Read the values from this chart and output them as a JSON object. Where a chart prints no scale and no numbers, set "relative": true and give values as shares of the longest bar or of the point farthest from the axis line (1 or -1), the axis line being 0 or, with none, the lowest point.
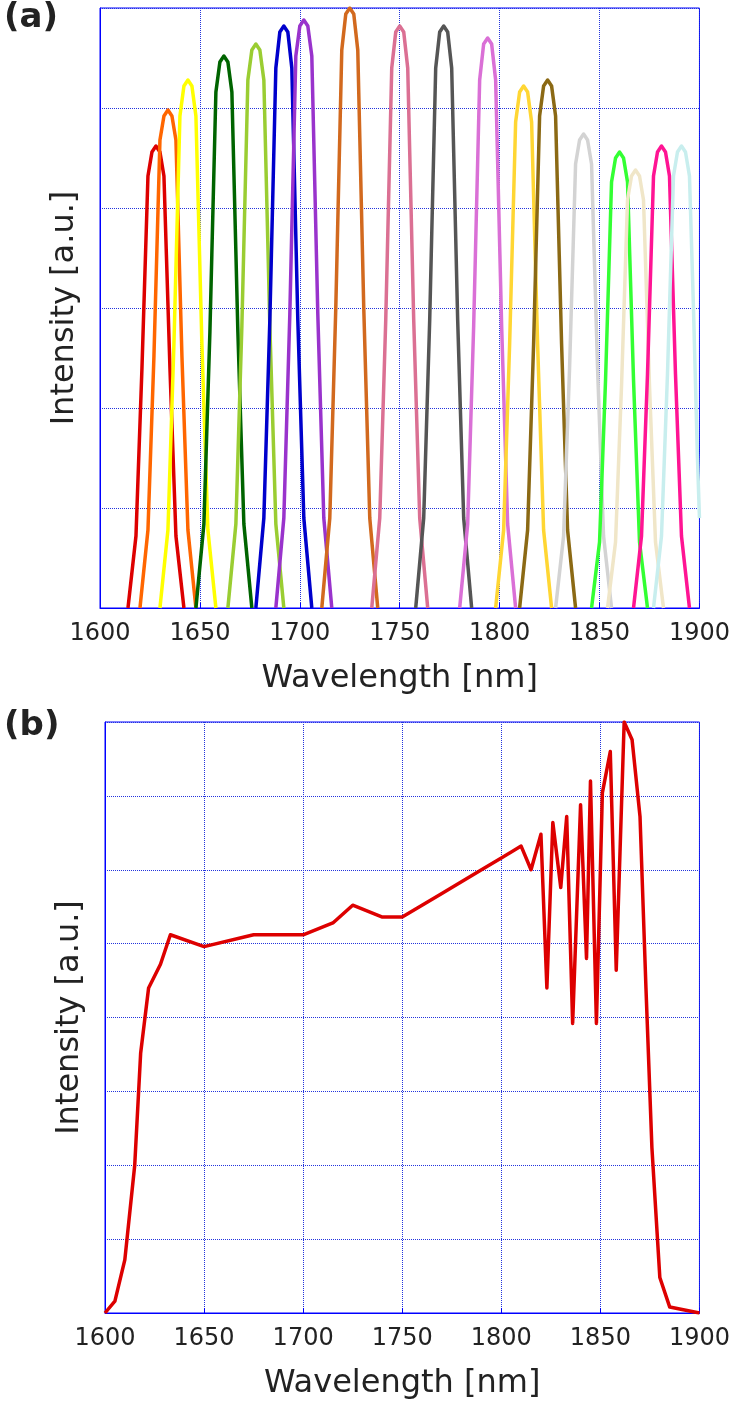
{
  "chart_data": [
    {
      "type": "line",
      "relative": true,
      "annotations": [
        "(a)"
      ],
      "xlabel": "Wavelength [nm]",
      "ylabel": "Intensity [a.u.]",
      "xlim": [
        1600,
        1900
      ],
      "xticks": [
        1600,
        1650,
        1700,
        1750,
        1800,
        1850,
        1900
      ],
      "grid": true,
      "series": [
        {
          "color": "#dd0000",
          "x": [
            1614,
            1618,
            1621,
            1624,
            1626,
            1628,
            1630,
            1632,
            1635,
            1638,
            1642
          ],
          "values": [
            0,
            0.12,
            0.4,
            0.72,
            0.76,
            0.77,
            0.76,
            0.72,
            0.4,
            0.12,
            0
          ]
        },
        {
          "color": "#ff6600",
          "x": [
            1620,
            1624,
            1627,
            1630,
            1632,
            1634,
            1636,
            1638,
            1641,
            1644,
            1648
          ],
          "values": [
            0,
            0.13,
            0.42,
            0.78,
            0.82,
            0.83,
            0.82,
            0.78,
            0.42,
            0.13,
            0
          ]
        },
        {
          "color": "#ffff00",
          "x": [
            1630,
            1634,
            1637,
            1640,
            1642,
            1644,
            1646,
            1648,
            1651,
            1654,
            1658
          ],
          "values": [
            0,
            0.13,
            0.44,
            0.82,
            0.87,
            0.88,
            0.87,
            0.82,
            0.44,
            0.13,
            0
          ]
        },
        {
          "color": "#006400",
          "x": [
            1648,
            1652,
            1655,
            1658,
            1660,
            1662,
            1664,
            1666,
            1669,
            1672,
            1676
          ],
          "values": [
            0,
            0.14,
            0.46,
            0.86,
            0.91,
            0.92,
            0.91,
            0.86,
            0.46,
            0.14,
            0
          ]
        },
        {
          "color": "#9acd32",
          "x": [
            1664,
            1668,
            1671,
            1674,
            1676,
            1678,
            1680,
            1682,
            1685,
            1688,
            1692
          ],
          "values": [
            0,
            0.14,
            0.47,
            0.88,
            0.93,
            0.94,
            0.93,
            0.88,
            0.47,
            0.14,
            0
          ]
        },
        {
          "color": "#0000cc",
          "x": [
            1678,
            1682,
            1685,
            1688,
            1690,
            1692,
            1694,
            1696,
            1699,
            1702,
            1706
          ],
          "values": [
            0,
            0.15,
            0.48,
            0.9,
            0.96,
            0.97,
            0.96,
            0.9,
            0.48,
            0.15,
            0
          ]
        },
        {
          "color": "#9933cc",
          "x": [
            1688,
            1692,
            1695,
            1698,
            1700,
            1702,
            1704,
            1706,
            1709,
            1712,
            1716
          ],
          "values": [
            0,
            0.15,
            0.49,
            0.92,
            0.97,
            0.98,
            0.97,
            0.92,
            0.49,
            0.15,
            0
          ]
        },
        {
          "color": "#d2691e",
          "x": [
            1711,
            1715,
            1718,
            1721,
            1723,
            1725,
            1727,
            1729,
            1732,
            1735,
            1739
          ],
          "values": [
            0,
            0.15,
            0.5,
            0.93,
            0.99,
            1,
            0.99,
            0.93,
            0.5,
            0.15,
            0
          ]
        },
        {
          "color": "#db7093",
          "x": [
            1736,
            1740,
            1743,
            1746,
            1748,
            1750,
            1752,
            1754,
            1757,
            1760,
            1764
          ],
          "values": [
            0,
            0.15,
            0.48,
            0.9,
            0.96,
            0.97,
            0.96,
            0.9,
            0.48,
            0.15,
            0
          ]
        },
        {
          "color": "#555555",
          "x": [
            1758,
            1762,
            1765,
            1768,
            1770,
            1772,
            1774,
            1776,
            1779,
            1782,
            1786
          ],
          "values": [
            0,
            0.15,
            0.48,
            0.9,
            0.96,
            0.97,
            0.96,
            0.9,
            0.48,
            0.15,
            0
          ]
        },
        {
          "color": "#da70d6",
          "x": [
            1780,
            1784,
            1787,
            1790,
            1792,
            1794,
            1796,
            1798,
            1801,
            1804,
            1808
          ],
          "values": [
            0,
            0.14,
            0.47,
            0.88,
            0.94,
            0.95,
            0.94,
            0.88,
            0.47,
            0.14,
            0
          ]
        },
        {
          "color": "#ffd633",
          "x": [
            1798,
            1802,
            1805,
            1808,
            1810,
            1812,
            1814,
            1816,
            1819,
            1822,
            1826
          ],
          "values": [
            0,
            0.13,
            0.44,
            0.81,
            0.86,
            0.87,
            0.86,
            0.81,
            0.44,
            0.13,
            0
          ]
        },
        {
          "color": "#8b6914",
          "x": [
            1810,
            1814,
            1817,
            1820,
            1822,
            1824,
            1826,
            1828,
            1831,
            1834,
            1838
          ],
          "values": [
            0,
            0.13,
            0.44,
            0.82,
            0.87,
            0.88,
            0.87,
            0.82,
            0.44,
            0.13,
            0
          ]
        },
        {
          "color": "#d3d3d3",
          "x": [
            1828,
            1832,
            1835,
            1838,
            1840,
            1842,
            1844,
            1846,
            1849,
            1852,
            1856
          ],
          "values": [
            0,
            0.12,
            0.4,
            0.74,
            0.78,
            0.79,
            0.78,
            0.74,
            0.4,
            0.12,
            0
          ]
        },
        {
          "color": "#33ff33",
          "x": [
            1846,
            1850,
            1853,
            1856,
            1858,
            1860,
            1862,
            1864,
            1867,
            1870,
            1874
          ],
          "values": [
            0,
            0.11,
            0.38,
            0.71,
            0.75,
            0.76,
            0.75,
            0.71,
            0.38,
            0.11,
            0
          ]
        },
        {
          "color": "#f0e6c8",
          "x": [
            1854,
            1858,
            1861,
            1864,
            1866,
            1868,
            1870,
            1872,
            1875,
            1878,
            1882
          ],
          "values": [
            0,
            0.11,
            0.37,
            0.68,
            0.72,
            0.73,
            0.72,
            0.68,
            0.37,
            0.11,
            0
          ]
        },
        {
          "color": "#ff1493",
          "x": [
            1867,
            1871,
            1874,
            1877,
            1879,
            1881,
            1883,
            1885,
            1888,
            1891,
            1895
          ],
          "values": [
            0,
            0.12,
            0.39,
            0.72,
            0.76,
            0.77,
            0.76,
            0.72,
            0.39,
            0.12,
            0
          ]
        },
        {
          "color": "#c8eeee",
          "x": [
            1877,
            1881,
            1884,
            1887,
            1889,
            1891,
            1893,
            1895,
            1897,
            1899,
            1900
          ],
          "values": [
            0,
            0.12,
            0.39,
            0.72,
            0.76,
            0.77,
            0.76,
            0.72,
            0.5,
            0.25,
            0.15
          ]
        }
      ]
    },
    {
      "type": "line",
      "relative": true,
      "annotations": [
        "(b)"
      ],
      "xlabel": "Wavelength [nm]",
      "ylabel": "Intensity [a.u.]",
      "xlim": [
        1600,
        1900
      ],
      "xticks": [
        1600,
        1650,
        1700,
        1750,
        1800,
        1850,
        1900
      ],
      "grid": true,
      "series": [
        {
          "color": "#dd0000",
          "x": [
            1600,
            1605,
            1610,
            1615,
            1618,
            1622,
            1628,
            1633,
            1650,
            1675,
            1700,
            1715,
            1725,
            1740,
            1750,
            1770,
            1790,
            1800,
            1810,
            1815,
            1820,
            1823,
            1826,
            1830,
            1833,
            1836,
            1840,
            1843,
            1845,
            1848,
            1851,
            1855,
            1858,
            1862,
            1866,
            1870,
            1873,
            1876,
            1880,
            1885,
            1900
          ],
          "values": [
            0,
            0.02,
            0.09,
            0.25,
            0.44,
            0.55,
            0.59,
            0.64,
            0.62,
            0.64,
            0.64,
            0.66,
            0.69,
            0.67,
            0.67,
            0.71,
            0.75,
            0.77,
            0.79,
            0.75,
            0.81,
            0.55,
            0.83,
            0.72,
            0.84,
            0.49,
            0.86,
            0.6,
            0.9,
            0.49,
            0.88,
            0.95,
            0.58,
            1,
            0.97,
            0.84,
            0.55,
            0.28,
            0.06,
            0.01,
            0
          ]
        }
      ]
    }
  ]
}
